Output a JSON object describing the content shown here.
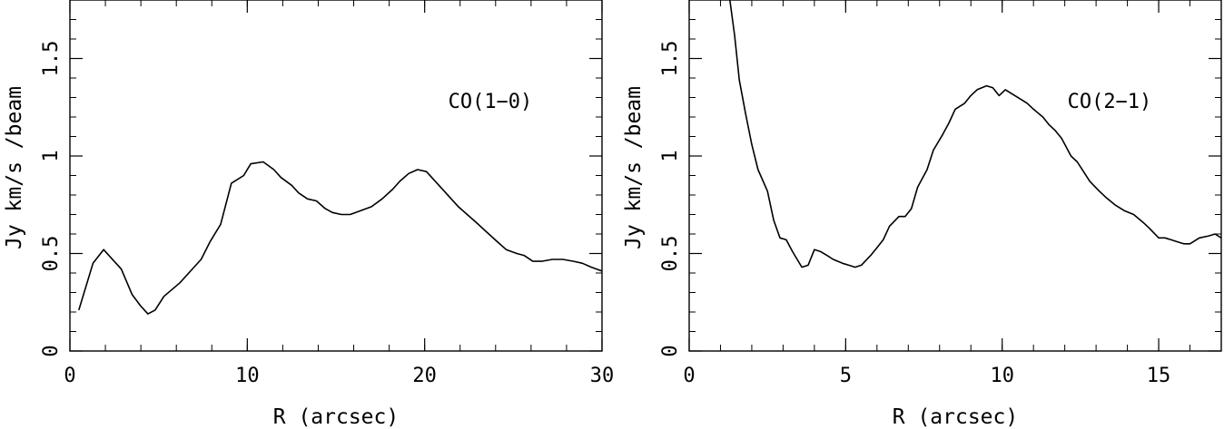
{
  "chart_data": [
    {
      "type": "line",
      "annotation": "CO(1−0)",
      "xlabel": "R (arcsec)",
      "ylabel": "Jy km/s /beam",
      "xlim": [
        0,
        30
      ],
      "ylim": [
        0,
        1.8
      ],
      "xticks": [
        0,
        10,
        20,
        30
      ],
      "xtick_labels": [
        "0",
        "10",
        "20",
        "30"
      ],
      "yticks": [
        0,
        0.5,
        1,
        1.5
      ],
      "ytick_labels": [
        "0",
        "0.5",
        "1",
        "1.5"
      ],
      "xminor_step": 2,
      "yminor_step": 0.1,
      "grid": false,
      "series": [
        {
          "x": [
            0.5,
            1.3,
            1.9,
            2.9,
            3.5,
            4.0,
            4.4,
            4.8,
            5.3,
            6.2,
            6.8,
            7.4,
            7.9,
            8.5,
            9.1,
            9.8,
            10.2,
            10.9,
            11.5,
            11.9,
            12.5,
            12.9,
            13.4,
            13.9,
            14.4,
            14.8,
            15.3,
            15.8,
            16.4,
            17.0,
            17.6,
            18.2,
            18.6,
            19.1,
            19.6,
            20.1,
            20.6,
            21.2,
            21.9,
            22.4,
            22.9,
            23.5,
            24.1,
            24.6,
            25.2,
            25.6,
            26.1,
            26.6,
            27.2,
            27.8,
            28.4,
            28.9,
            29.4,
            30.0
          ],
          "y": [
            0.21,
            0.45,
            0.52,
            0.42,
            0.29,
            0.23,
            0.19,
            0.21,
            0.28,
            0.35,
            0.41,
            0.47,
            0.56,
            0.65,
            0.86,
            0.9,
            0.96,
            0.97,
            0.93,
            0.89,
            0.85,
            0.81,
            0.78,
            0.77,
            0.73,
            0.71,
            0.7,
            0.7,
            0.72,
            0.74,
            0.78,
            0.83,
            0.87,
            0.91,
            0.93,
            0.92,
            0.87,
            0.81,
            0.74,
            0.7,
            0.66,
            0.61,
            0.56,
            0.52,
            0.5,
            0.49,
            0.46,
            0.46,
            0.47,
            0.47,
            0.46,
            0.45,
            0.43,
            0.41
          ]
        }
      ]
    },
    {
      "type": "line",
      "annotation": "CO(2−1)",
      "xlabel": "R (arcsec)",
      "ylabel": "Jy km/s /beam",
      "xlim": [
        0,
        17
      ],
      "ylim": [
        0,
        1.8
      ],
      "xticks": [
        0,
        5,
        10,
        15
      ],
      "xtick_labels": [
        "0",
        "5",
        "10",
        "15"
      ],
      "yticks": [
        0,
        0.5,
        1,
        1.5
      ],
      "ytick_labels": [
        "0",
        "0.5",
        "1",
        "1.5"
      ],
      "xminor_step": 1,
      "yminor_step": 0.1,
      "grid": false,
      "series": [
        {
          "x": [
            1.3,
            1.45,
            1.6,
            1.8,
            2.0,
            2.2,
            2.5,
            2.7,
            2.9,
            3.1,
            3.3,
            3.6,
            3.8,
            4.0,
            4.2,
            4.4,
            4.6,
            4.9,
            5.1,
            5.3,
            5.5,
            5.8,
            6.0,
            6.2,
            6.4,
            6.7,
            6.9,
            7.1,
            7.3,
            7.6,
            7.8,
            8.1,
            8.3,
            8.5,
            8.8,
            9.0,
            9.2,
            9.5,
            9.7,
            9.9,
            10.1,
            10.3,
            10.6,
            10.8,
            11.0,
            11.3,
            11.5,
            11.7,
            11.9,
            12.2,
            12.4,
            12.6,
            12.8,
            13.1,
            13.3,
            13.6,
            13.9,
            14.2,
            14.5,
            14.7,
            15.0,
            15.2,
            15.4,
            15.6,
            15.8,
            16.0,
            16.3,
            16.6,
            16.8,
            17.0
          ],
          "y": [
            1.8,
            1.62,
            1.39,
            1.22,
            1.06,
            0.93,
            0.82,
            0.67,
            0.58,
            0.57,
            0.51,
            0.43,
            0.44,
            0.52,
            0.51,
            0.49,
            0.47,
            0.45,
            0.44,
            0.43,
            0.44,
            0.49,
            0.53,
            0.57,
            0.64,
            0.69,
            0.69,
            0.73,
            0.84,
            0.93,
            1.03,
            1.11,
            1.17,
            1.24,
            1.27,
            1.31,
            1.34,
            1.36,
            1.35,
            1.31,
            1.34,
            1.32,
            1.29,
            1.27,
            1.24,
            1.2,
            1.16,
            1.13,
            1.09,
            1.0,
            0.97,
            0.92,
            0.87,
            0.82,
            0.79,
            0.75,
            0.72,
            0.7,
            0.66,
            0.63,
            0.58,
            0.58,
            0.57,
            0.56,
            0.55,
            0.55,
            0.58,
            0.59,
            0.6,
            0.58
          ]
        }
      ]
    }
  ]
}
